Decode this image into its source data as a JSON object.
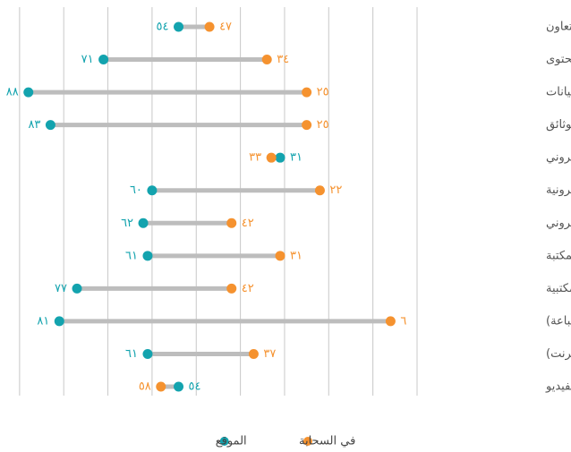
{
  "chart_data": {
    "type": "dumbbell",
    "categories": [
      "أدوات التعاون",
      "إدارة المحتوى",
      "قواعد البيانات",
      "إدارة الوثائق",
      "التعلم الإلكتروني",
      "إدارة الموارد الإلكترونية",
      "البريد الإلكتروني",
      "فهرس المكتبة",
      "الأدوات المكتبية",
      "النشر (الطباعة)",
      "النشر (الإنترنت)",
      "التداول بالفيديو"
    ],
    "series": [
      {
        "name": "الموقع",
        "color": "#13a3ae",
        "values": [
          54,
          71,
          88,
          83,
          31,
          60,
          62,
          61,
          77,
          81,
          61,
          54
        ],
        "value_labels": [
          "٥٤",
          "٧١",
          "٨٨",
          "٨٣",
          "٣١",
          "٦٠",
          "٦٢",
          "٦١",
          "٧٧",
          "٨١",
          "٦١",
          "٥٤"
        ]
      },
      {
        "name": "في السحابة",
        "color": "#f5922f",
        "values": [
          47,
          34,
          25,
          25,
          33,
          22,
          42,
          31,
          42,
          6,
          37,
          58
        ],
        "value_labels": [
          "٤٧",
          "٣٤",
          "٢٥",
          "٢٥",
          "٣٣",
          "٢٢",
          "٤٢",
          "٣١",
          "٤٢",
          "٦",
          "٣٧",
          "٥٨"
        ]
      }
    ],
    "xlim": [
      0,
      92
    ],
    "xticks": [
      0,
      10,
      20,
      30,
      40,
      50,
      60,
      70,
      80,
      90
    ],
    "x_reversed": true,
    "grid": true,
    "legend": "bottom"
  }
}
